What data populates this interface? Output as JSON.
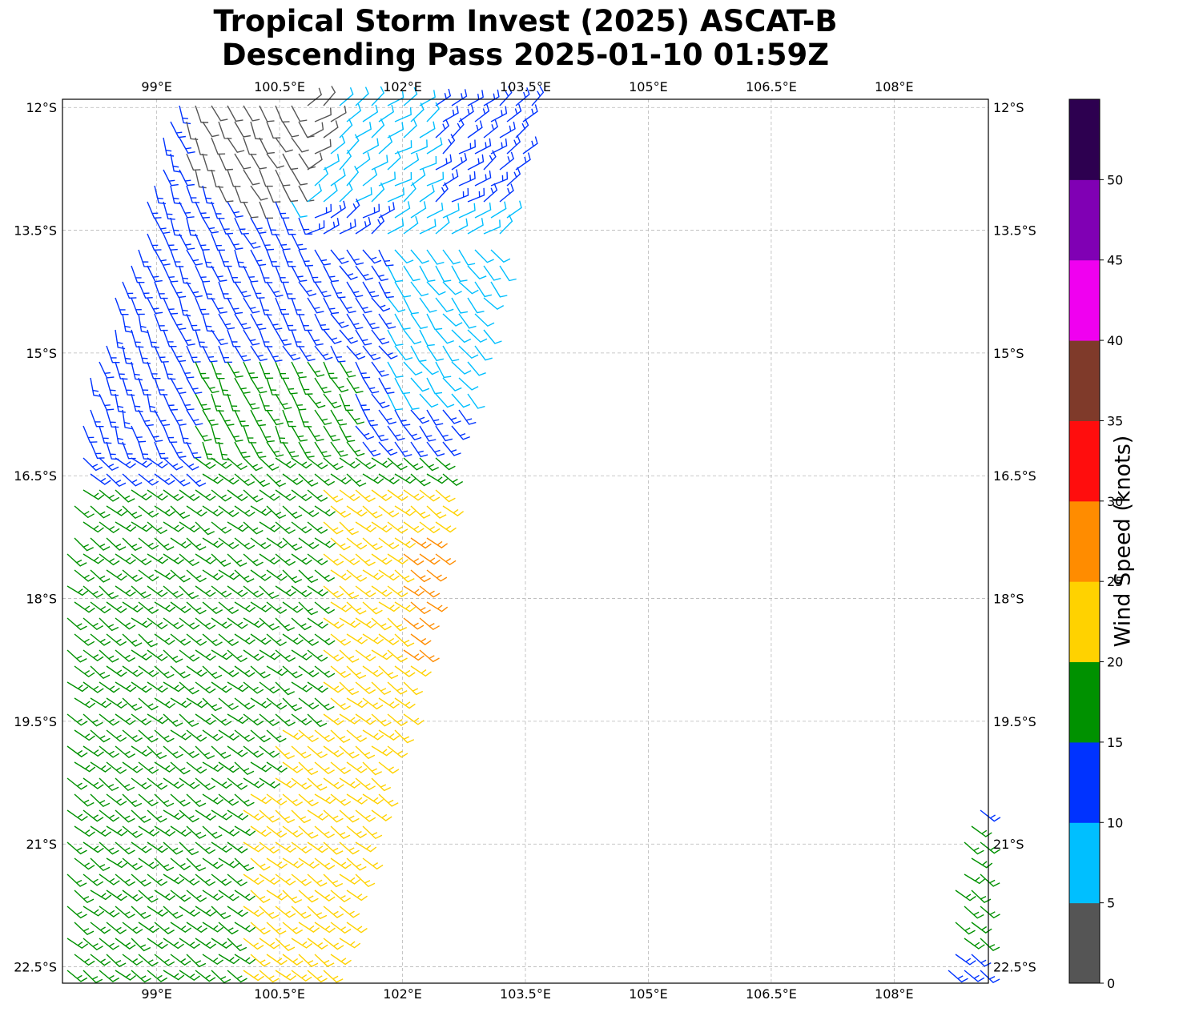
{
  "title": {
    "line1": "Tropical Storm Invest (2025) ASCAT-B",
    "line2": "Descending Pass 2025-01-10 01:59Z"
  },
  "map": {
    "lon_range": [
      97.85,
      109.15
    ],
    "lat_range": [
      -22.7,
      -11.9
    ],
    "grid": true,
    "lon_ticks": [
      {
        "value": 99,
        "label": "99°E"
      },
      {
        "value": 100.5,
        "label": "100.5°E"
      },
      {
        "value": 102,
        "label": "102°E"
      },
      {
        "value": 103.5,
        "label": "103.5°E"
      },
      {
        "value": 105,
        "label": "105°E"
      },
      {
        "value": 106.5,
        "label": "106.5°E"
      },
      {
        "value": 108,
        "label": "108°E"
      }
    ],
    "lat_ticks": [
      {
        "value": -12,
        "label": "12°S"
      },
      {
        "value": -13.5,
        "label": "13.5°S"
      },
      {
        "value": -15,
        "label": "15°S"
      },
      {
        "value": -16.5,
        "label": "16.5°S"
      },
      {
        "value": -18,
        "label": "18°S"
      },
      {
        "value": -19.5,
        "label": "19.5°S"
      },
      {
        "value": -21,
        "label": "21°S"
      },
      {
        "value": -22.5,
        "label": "22.5°S"
      }
    ]
  },
  "colorbar": {
    "label": "Wind Speed (knots)",
    "levels": [
      0,
      5,
      10,
      15,
      20,
      25,
      30,
      35,
      40,
      45,
      50,
      55
    ],
    "colors": [
      "#555555",
      "#00bfff",
      "#0033ff",
      "#009100",
      "#ffd200",
      "#ff8c00",
      "#ff0d0d",
      "#7f3a2a",
      "#f000f0",
      "#8000b4",
      "#2d0050"
    ],
    "tick_labels": [
      "0",
      "5",
      "10",
      "15",
      "20",
      "25",
      "30",
      "35",
      "40",
      "45",
      "50"
    ]
  }
}
